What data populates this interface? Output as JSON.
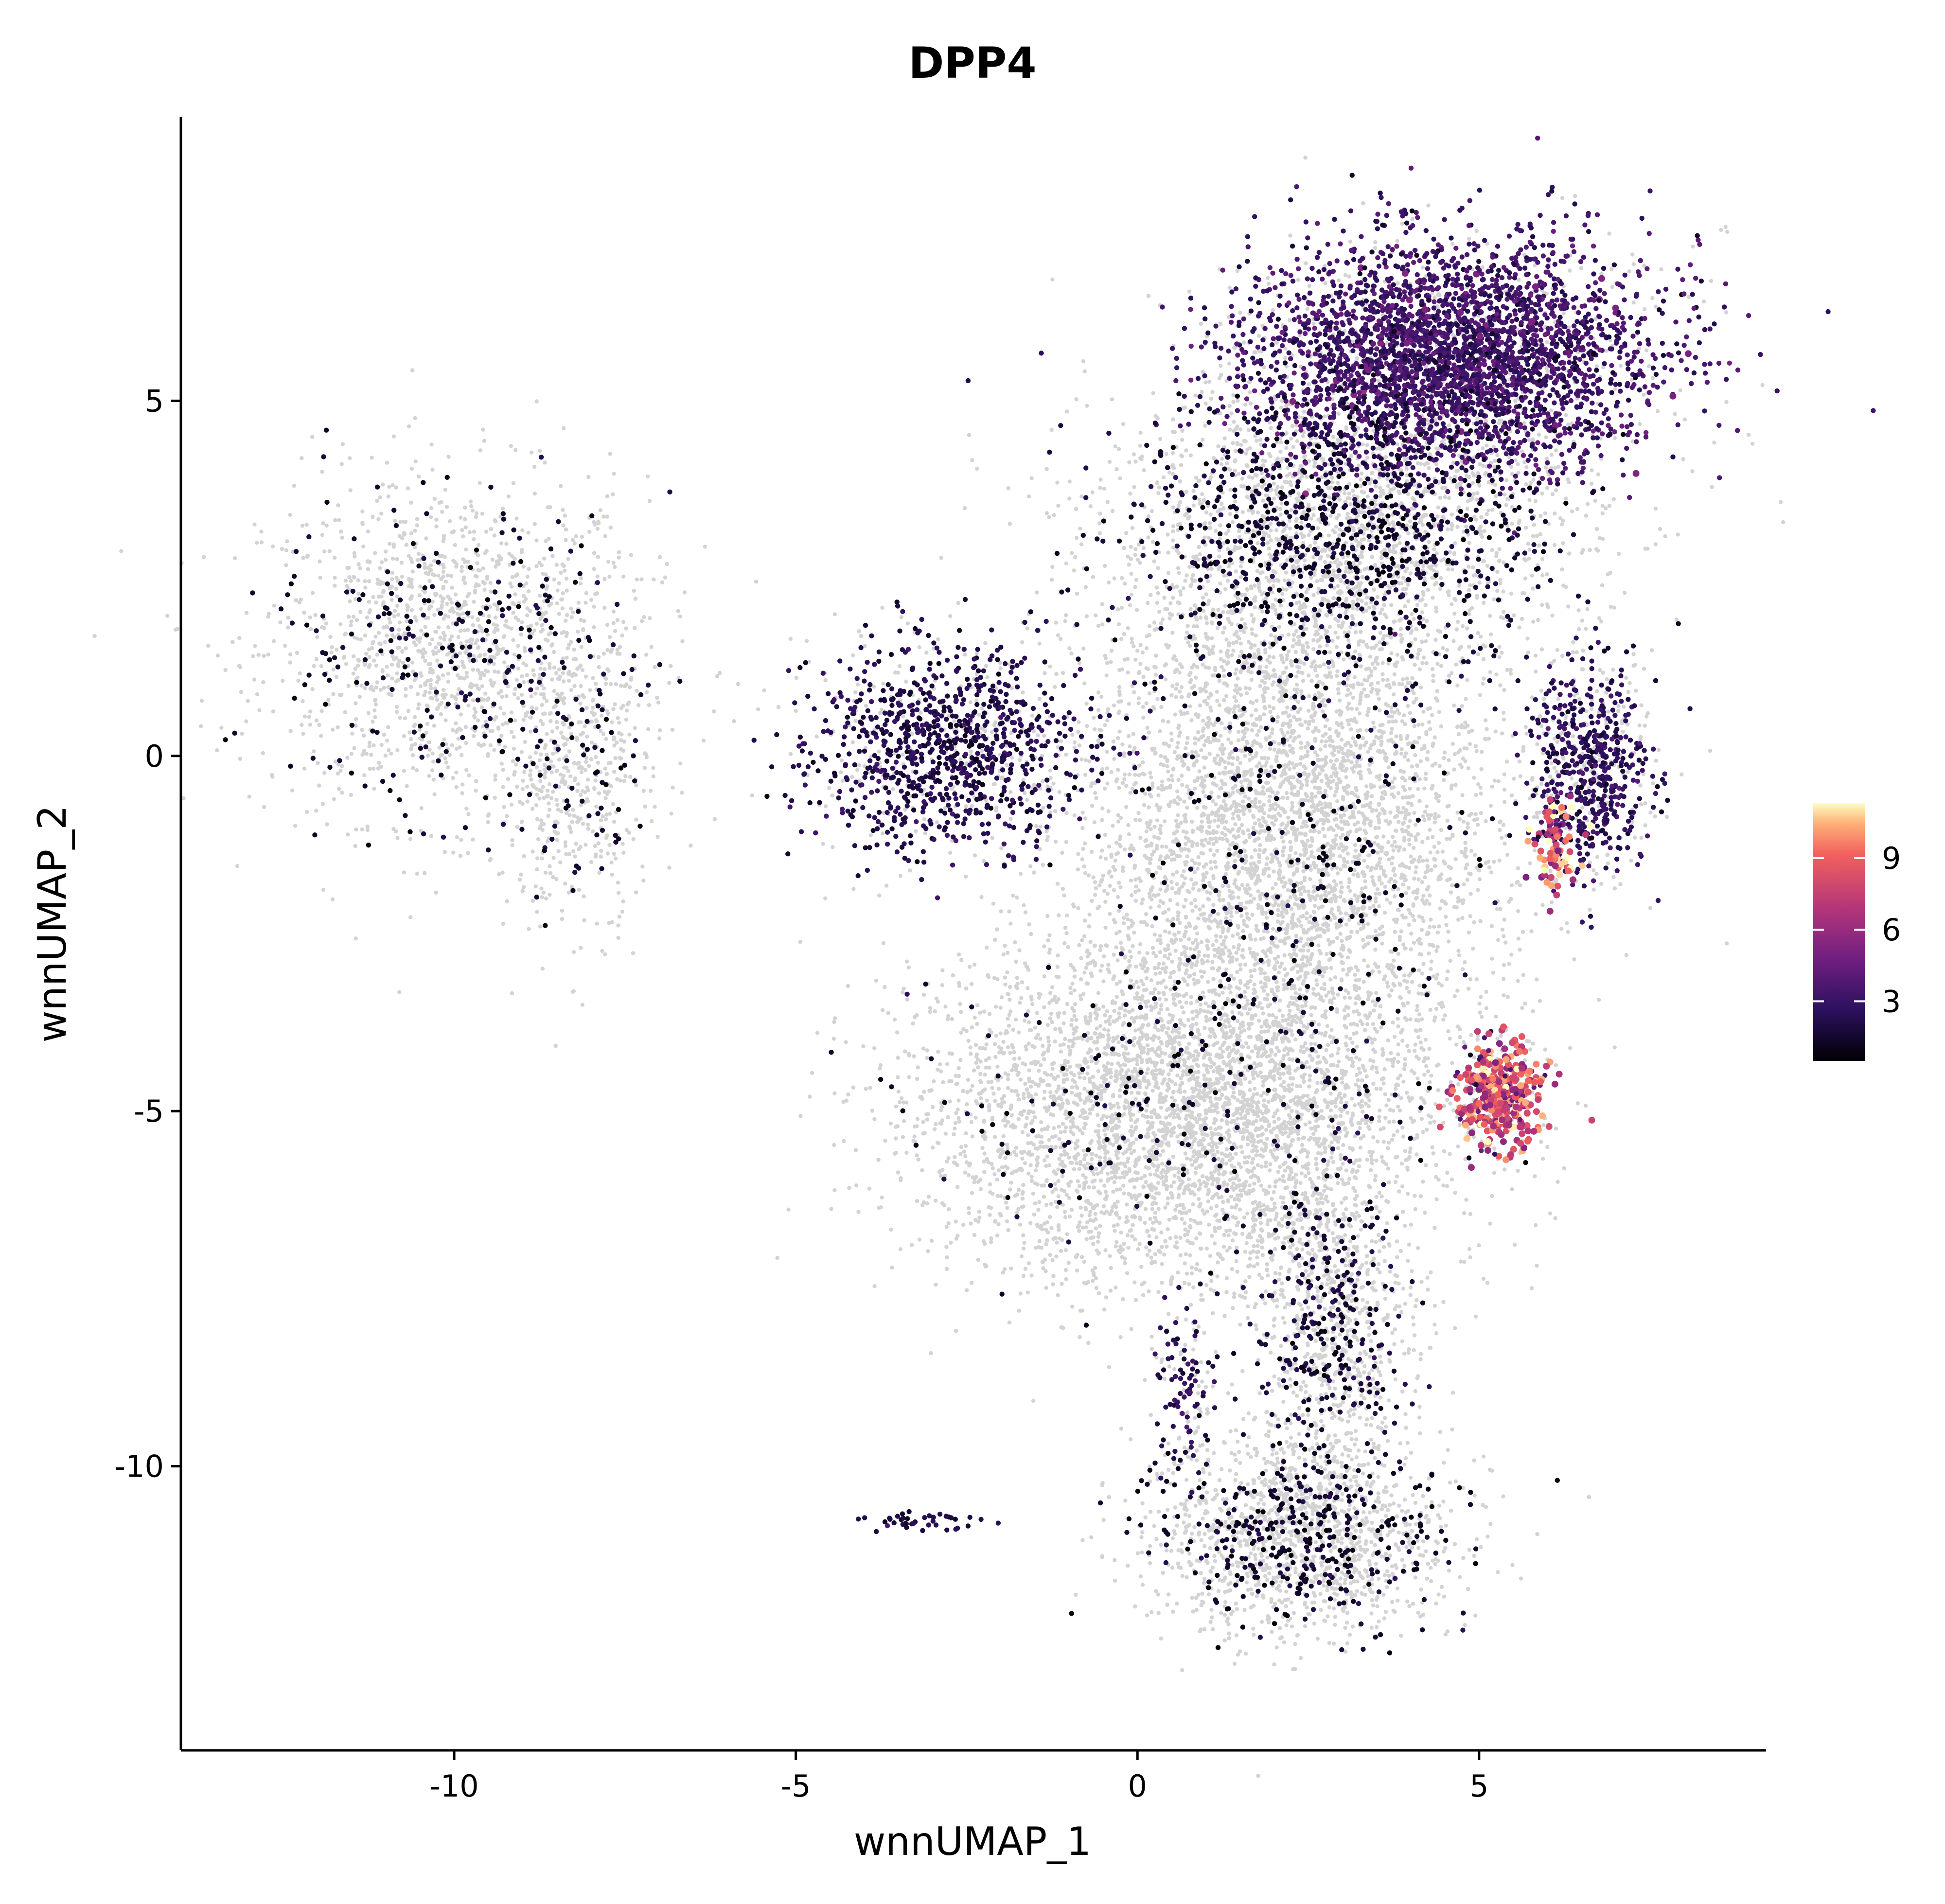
{
  "chart_data": {
    "type": "scatter",
    "title": "DPP4",
    "xlabel": "wnnUMAP_1",
    "ylabel": "wnnUMAP_2",
    "xlim": [
      -14.0,
      9.2
    ],
    "ylim": [
      -14.0,
      9.0
    ],
    "x_ticks": [
      {
        "value": -10,
        "label": "-10"
      },
      {
        "value": -5,
        "label": "-5"
      },
      {
        "value": 0,
        "label": "0"
      },
      {
        "value": 5,
        "label": "5"
      }
    ],
    "y_ticks": [
      {
        "value": 5,
        "label": "5"
      },
      {
        "value": 0,
        "label": "0"
      },
      {
        "value": -5,
        "label": "-5"
      },
      {
        "value": -10,
        "label": "-10"
      }
    ],
    "grid": false,
    "legend": {
      "position": "right",
      "title": "",
      "colormap": "magma",
      "range": [
        0.5,
        11.3
      ],
      "ticks": [
        {
          "value": 9,
          "label": "9"
        },
        {
          "value": 6,
          "label": "6"
        },
        {
          "value": 3,
          "label": "3"
        }
      ]
    },
    "background_color": "#d3d3d3",
    "point_colors": [
      "#d3d3d3",
      "#000004",
      "#3b0f70",
      "#8c2981",
      "#de4968",
      "#fe9f6d",
      "#fcfdbf"
    ],
    "clusters": [
      {
        "name": "",
        "cx": -10.0,
        "cy": 1.5,
        "sx": 1.4,
        "sy": 1.2,
        "n_bg": 1400,
        "n_expr": 260,
        "expr_mean": 1.4
      },
      {
        "name": "",
        "cx": -8.2,
        "cy": -0.4,
        "sx": 0.6,
        "sy": 1.1,
        "n_bg": 400,
        "n_expr": 60,
        "expr_mean": 1.3
      },
      {
        "name": "",
        "cx": -2.8,
        "cy": 0.1,
        "sx": 1.1,
        "sy": 0.8,
        "n_bg": 300,
        "n_expr": 900,
        "expr_mean": 2.2
      },
      {
        "name": "",
        "cx": 4.6,
        "cy": 5.6,
        "sx": 1.6,
        "sy": 0.9,
        "n_bg": 500,
        "n_expr": 3200,
        "expr_mean": 3.2
      },
      {
        "name": "",
        "cx": 3.0,
        "cy": 3.2,
        "sx": 1.8,
        "sy": 1.1,
        "n_bg": 1800,
        "n_expr": 900,
        "expr_mean": 1.5
      },
      {
        "name": "",
        "cx": 6.6,
        "cy": -0.2,
        "sx": 0.5,
        "sy": 0.8,
        "n_bg": 250,
        "n_expr": 500,
        "expr_mean": 2.6
      },
      {
        "name": "",
        "cx": 6.1,
        "cy": -1.2,
        "sx": 0.2,
        "sy": 0.4,
        "n_bg": 0,
        "n_expr": 80,
        "expr_mean": 8.5
      },
      {
        "name": "",
        "cx": 5.3,
        "cy": -4.8,
        "sx": 0.35,
        "sy": 0.4,
        "n_bg": 40,
        "n_expr": 380,
        "expr_mean": 7.8
      },
      {
        "name": "",
        "cx": 2.2,
        "cy": -1.0,
        "sx": 1.5,
        "sy": 1.8,
        "n_bg": 4200,
        "n_expr": 220,
        "expr_mean": 1.2
      },
      {
        "name": "",
        "cx": 0.6,
        "cy": -5.0,
        "sx": 1.9,
        "sy": 1.2,
        "n_bg": 4200,
        "n_expr": 200,
        "expr_mean": 1.2
      },
      {
        "name": "",
        "cx": 2.8,
        "cy": -8.0,
        "sx": 0.6,
        "sy": 1.3,
        "n_bg": 800,
        "n_expr": 280,
        "expr_mean": 1.6
      },
      {
        "name": "",
        "cx": 2.4,
        "cy": -11.0,
        "sx": 1.1,
        "sy": 0.7,
        "n_bg": 1300,
        "n_expr": 360,
        "expr_mean": 1.4
      },
      {
        "name": "",
        "cx": 0.7,
        "cy": -8.9,
        "sx": 0.3,
        "sy": 0.6,
        "n_bg": 60,
        "n_expr": 80,
        "expr_mean": 2.5
      },
      {
        "name": "",
        "cx": -3.2,
        "cy": -10.8,
        "sx": 0.5,
        "sy": 0.1,
        "n_bg": 0,
        "n_expr": 40,
        "expr_mean": 2.0
      }
    ]
  }
}
